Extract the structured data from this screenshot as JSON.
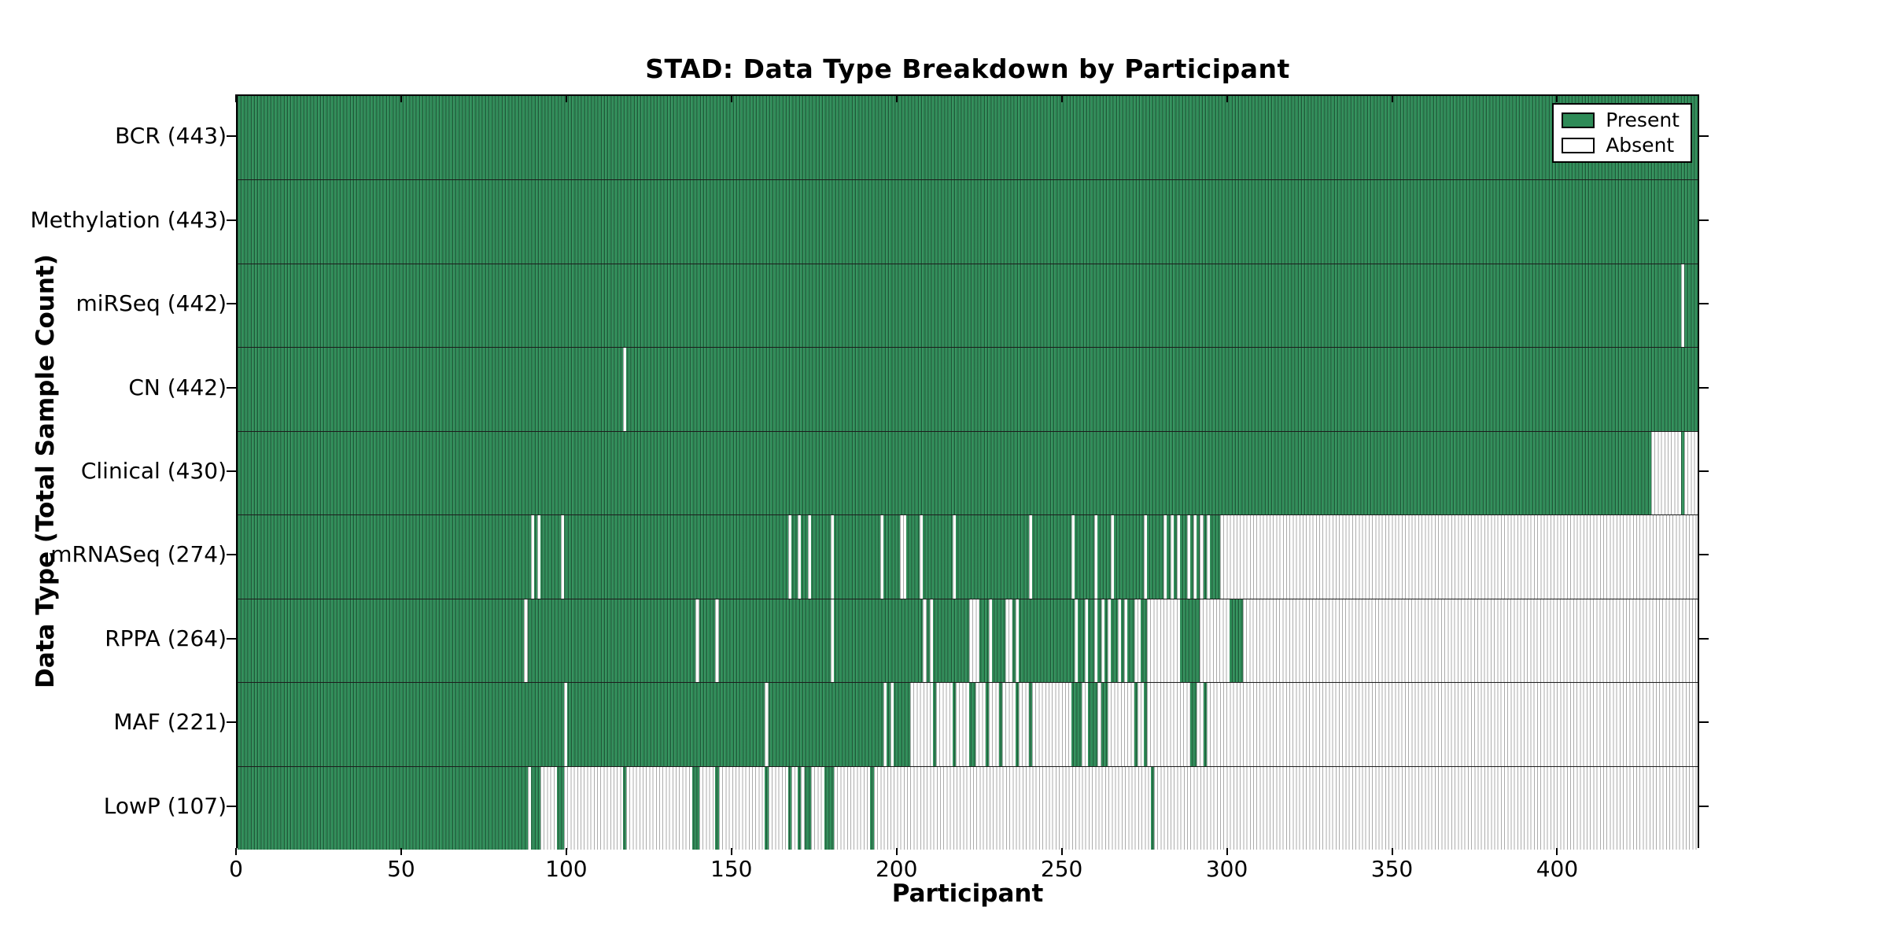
{
  "chart_data": {
    "type": "heatmap",
    "title": "STAD: Data Type Breakdown by Participant",
    "xlabel": "Participant",
    "ylabel": "Data Type (Total Sample Count)",
    "x_ticks": [
      0,
      50,
      100,
      150,
      200,
      250,
      300,
      350,
      400
    ],
    "participant_count": 443,
    "legend": {
      "present_label": "Present",
      "absent_label": "Absent",
      "position": "upper right"
    },
    "colors": {
      "present": "#2E8B57",
      "absent": "#FFFFFF",
      "axis": "#000000"
    },
    "grid": false,
    "rows": [
      {
        "label": "BCR",
        "total": 443,
        "display": "BCR (443)",
        "absent_ranges": []
      },
      {
        "label": "Methylation",
        "total": 443,
        "display": "Methylation (443)",
        "absent_ranges": []
      },
      {
        "label": "miRSeq",
        "total": 442,
        "display": "miRSeq (442)",
        "absent_ranges": [
          [
            438,
            438
          ]
        ]
      },
      {
        "label": "CN",
        "total": 442,
        "display": "CN (442)",
        "absent_ranges": [
          [
            117,
            117
          ]
        ]
      },
      {
        "label": "Clinical",
        "total": 430,
        "display": "Clinical (430)",
        "absent_ranges": [
          [
            429,
            437
          ],
          [
            439,
            442
          ]
        ]
      },
      {
        "label": "mRNASeq",
        "total": 274,
        "display": "mRNASeq (274)",
        "absent_ranges": [
          [
            89,
            89
          ],
          [
            91,
            91
          ],
          [
            98,
            98
          ],
          [
            167,
            167
          ],
          [
            170,
            170
          ],
          [
            173,
            173
          ],
          [
            180,
            180
          ],
          [
            195,
            195
          ],
          [
            201,
            202
          ],
          [
            207,
            207
          ],
          [
            217,
            217
          ],
          [
            240,
            240
          ],
          [
            253,
            253
          ],
          [
            260,
            260
          ],
          [
            265,
            265
          ],
          [
            275,
            275
          ],
          [
            281,
            281
          ],
          [
            283,
            283
          ],
          [
            285,
            285
          ],
          [
            288,
            288
          ],
          [
            290,
            290
          ],
          [
            292,
            292
          ],
          [
            294,
            294
          ],
          [
            298,
            442
          ]
        ]
      },
      {
        "label": "RPPA",
        "total": 264,
        "display": "RPPA (264)",
        "absent_ranges": [
          [
            87,
            87
          ],
          [
            139,
            139
          ],
          [
            145,
            145
          ],
          [
            180,
            180
          ],
          [
            208,
            208
          ],
          [
            210,
            210
          ],
          [
            222,
            224
          ],
          [
            228,
            228
          ],
          [
            233,
            234
          ],
          [
            236,
            236
          ],
          [
            254,
            254
          ],
          [
            257,
            257
          ],
          [
            260,
            260
          ],
          [
            262,
            262
          ],
          [
            264,
            264
          ],
          [
            267,
            267
          ],
          [
            269,
            269
          ],
          [
            272,
            273
          ],
          [
            276,
            285
          ],
          [
            292,
            300
          ],
          [
            305,
            442
          ]
        ]
      },
      {
        "label": "MAF",
        "total": 221,
        "display": "MAF (221)",
        "absent_ranges": [
          [
            99,
            99
          ],
          [
            160,
            160
          ],
          [
            196,
            196
          ],
          [
            198,
            198
          ],
          [
            204,
            210
          ],
          [
            212,
            216
          ],
          [
            218,
            221
          ],
          [
            224,
            226
          ],
          [
            228,
            230
          ],
          [
            232,
            235
          ],
          [
            237,
            239
          ],
          [
            241,
            252
          ],
          [
            256,
            257
          ],
          [
            261,
            261
          ],
          [
            264,
            271
          ],
          [
            273,
            274
          ],
          [
            276,
            288
          ],
          [
            291,
            292
          ],
          [
            294,
            442
          ]
        ]
      },
      {
        "label": "LowP",
        "total": 107,
        "display": "LowP (107)",
        "absent_ranges": [
          [
            88,
            88
          ],
          [
            92,
            96
          ],
          [
            99,
            116
          ],
          [
            118,
            137
          ],
          [
            140,
            144
          ],
          [
            146,
            159
          ],
          [
            161,
            166
          ],
          [
            168,
            169
          ],
          [
            171,
            171
          ],
          [
            174,
            177
          ],
          [
            181,
            191
          ],
          [
            193,
            276
          ],
          [
            278,
            442
          ]
        ]
      }
    ]
  }
}
